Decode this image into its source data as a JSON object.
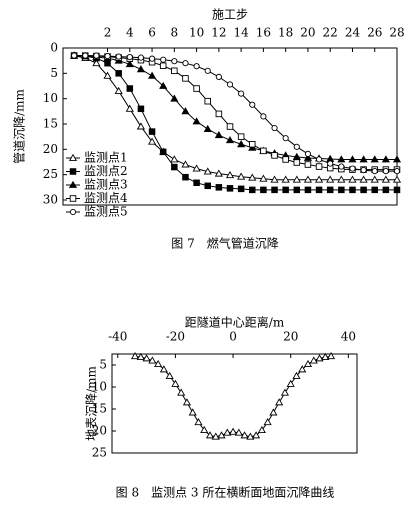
{
  "chart_data": [
    {
      "type": "line",
      "title": "施工步",
      "y_label": "管道沉降/mm",
      "caption": "图 7　燃气管道沉降",
      "xaxis_position": "top",
      "y_inverted": true,
      "grid": false,
      "legend": "lower left",
      "xlim": [
        -2,
        28
      ],
      "xticks": [
        2,
        4,
        6,
        8,
        10,
        12,
        14,
        16,
        18,
        20,
        22,
        24,
        26,
        28
      ],
      "ylim": [
        0,
        30
      ],
      "yticks": [
        0,
        5,
        10,
        15,
        20,
        25,
        30
      ],
      "x": [
        -1,
        0,
        1,
        2,
        3,
        4,
        5,
        6,
        7,
        8,
        9,
        10,
        11,
        12,
        13,
        14,
        15,
        16,
        17,
        18,
        19,
        20,
        21,
        22,
        23,
        24,
        25,
        26,
        27,
        28
      ],
      "series": [
        {
          "name": "监测点1",
          "color": "#000000",
          "marker": "triangle-open",
          "values": [
            1.5,
            2,
            3,
            5.5,
            8.5,
            12,
            15.5,
            18.5,
            20.5,
            22,
            23,
            23.8,
            24.4,
            24.8,
            25.1,
            25.4,
            25.6,
            25.8,
            26,
            26,
            26,
            26,
            26,
            26,
            26,
            26,
            26,
            26,
            26,
            26
          ]
        },
        {
          "name": "监测点2",
          "color": "#000000",
          "marker": "square-filled",
          "values": [
            1.5,
            1.6,
            2,
            3,
            5,
            8,
            12,
            16.5,
            20.5,
            23.5,
            25.5,
            26.6,
            27.2,
            27.5,
            27.7,
            27.8,
            28,
            28,
            28,
            28,
            28,
            28,
            28,
            28,
            28,
            28,
            28,
            28,
            28,
            28
          ]
        },
        {
          "name": "监测点3",
          "color": "#000000",
          "marker": "triangle-filled",
          "values": [
            1.5,
            1.6,
            1.8,
            2,
            2.5,
            3.2,
            4.2,
            5.5,
            7.5,
            10,
            12.5,
            14.5,
            16,
            17.2,
            18.2,
            19,
            19.7,
            20.3,
            20.8,
            21.2,
            21.5,
            21.7,
            21.8,
            21.9,
            22,
            22,
            22,
            22,
            22,
            22
          ]
        },
        {
          "name": "监测点4",
          "color": "#000000",
          "marker": "square-open",
          "values": [
            1.5,
            1.5,
            1.6,
            1.7,
            1.9,
            2.1,
            2.4,
            2.8,
            3.5,
            4.5,
            6,
            8,
            10.5,
            13,
            15.5,
            17.5,
            19,
            20.3,
            21.2,
            22,
            22.6,
            23,
            23.4,
            23.7,
            23.9,
            24,
            24,
            24,
            24,
            24
          ]
        },
        {
          "name": "监测点5",
          "color": "#000000",
          "marker": "circle-open",
          "values": [
            1.5,
            1.5,
            1.5,
            1.6,
            1.7,
            1.8,
            1.9,
            2.1,
            2.3,
            2.6,
            3,
            3.6,
            4.5,
            5.7,
            7.2,
            9,
            11.2,
            13.5,
            15.8,
            17.8,
            19.5,
            20.9,
            22,
            22.8,
            23.4,
            23.8,
            24.1,
            24.3,
            24.3,
            24.3
          ]
        }
      ]
    },
    {
      "type": "line",
      "title": "距隧道中心距离/m",
      "y_label": "地表沉降/mm",
      "caption": "图 8　监测点 3 所在横断面地面沉降曲线",
      "xaxis_position": "top",
      "y_inverted": true,
      "grid": false,
      "xlim": [
        -42,
        43
      ],
      "xticks": [
        -40,
        -20,
        0,
        20,
        40
      ],
      "ylim": [
        2.5,
        25
      ],
      "yticks": [
        5,
        10,
        15,
        20,
        25
      ],
      "x": [
        -34,
        -32,
        -30,
        -28,
        -26,
        -24,
        -22,
        -20,
        -18,
        -16,
        -14,
        -12,
        -10,
        -8,
        -6,
        -4,
        -2,
        0,
        2,
        4,
        6,
        8,
        10,
        12,
        14,
        16,
        18,
        20,
        22,
        24,
        26,
        28,
        30,
        32,
        34
      ],
      "series": [
        {
          "color": "#000000",
          "marker": "triangle-open",
          "values": [
            3,
            3.2,
            3.5,
            4,
            4.8,
            6,
            7.5,
            9.3,
            11.3,
            13.5,
            15.8,
            18,
            19.8,
            21,
            21.3,
            21,
            20.4,
            20.2,
            20.4,
            21,
            21.3,
            21,
            19.8,
            18,
            15.8,
            13.5,
            11.3,
            9.3,
            7.5,
            6,
            4.8,
            4,
            3.5,
            3.2,
            3
          ]
        }
      ]
    }
  ]
}
